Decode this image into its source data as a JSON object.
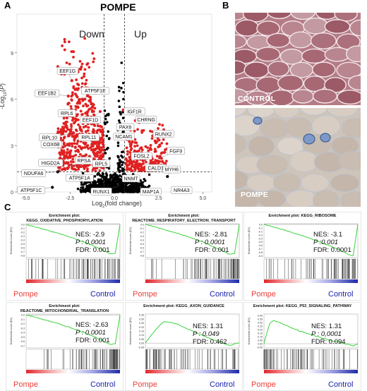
{
  "panels": {
    "a_letter": "A",
    "b_letter": "B",
    "c_letter": "C"
  },
  "volcano": {
    "title": "POMPE",
    "down_label": "Down",
    "up_label": "Up",
    "ylabel": "-Log10(P)",
    "xlabel": "Log2(fold change)",
    "genes": [
      "EEF1G",
      "EEF1B2",
      "ATP5F1E",
      "RPL6",
      "EEF1D",
      "IGF1R",
      "PAX6",
      "CHRNG",
      "RPL10",
      "RPL11",
      "COX6B",
      "NCAM1",
      "RUNX2",
      "FOSL2",
      "CALD1",
      "RPSA",
      "FGF9",
      "HIGD2A",
      "RPL5",
      "NDUFA6",
      "ATP5F1A",
      "MYH6",
      "RUNX1",
      "NNMT",
      "ATP5F1C",
      "MAP1A",
      "NR4A3"
    ]
  },
  "histology": {
    "control_label": "CONTROL",
    "pompe_label": "POMPE"
  },
  "gsea": {
    "group_left": "Pompe",
    "group_right": "Control",
    "plots": [
      {
        "title1": "Enrichment plot:",
        "title2": "KEGG_OXIDATIVE_PHOSPHORYLATION",
        "nes": "NES: -2.9",
        "p": "P : 0.0001",
        "fdr": "FDR: 0.001"
      },
      {
        "title1": "Enrichment plot:",
        "title2": "REACTOME_RESPIRATORY_ELECTRON_TRANSPORT",
        "nes": "NES: -2.81",
        "p": "P : 0.0001",
        "fdr": "FDR: 0.001"
      },
      {
        "title1": "Enrichment plot: KEGG_RIBOSOME",
        "title2": "",
        "nes": "NES: -3.1",
        "p": "P :0.001",
        "fdr": "FDR: 0.0001"
      },
      {
        "title1": "Enrichment plot:",
        "title2": "REACTOME_MITOCHONDRIAL_TRANSLATION",
        "nes": "NES: -2.63",
        "p": "P : 0.0001",
        "fdr": "FDR: 0.001"
      },
      {
        "title1": "Enrichment plot: KEGG_AXON_GUIDANCE",
        "title2": "",
        "nes": "NES: 1.31",
        "p": "P : 0.049",
        "fdr": "FDR: 0.462"
      },
      {
        "title1": "Enrichment plot: KEGG_P53_SIGNALING_PATHWAY",
        "title2": "",
        "nes": "NES: 1.31",
        "p": "P : 0,0001",
        "fdr": "FDR: 0.094"
      }
    ]
  },
  "chart_data": [
    {
      "type": "scatter",
      "title": "POMPE",
      "xlabel": "Log2(fold change)",
      "ylabel": "-Log10(P)",
      "xlim": [
        -5.5,
        5.5
      ],
      "ylim": [
        0,
        11.5
      ],
      "xticks": [
        "-5.0",
        "-2.5",
        "0.0",
        "2.5",
        "5.0"
      ],
      "yticks": [
        "0",
        "3",
        "6",
        "9"
      ],
      "thresholds": {
        "log2fc": [
          -0.58,
          0.58
        ],
        "neglog10p": 1.3
      },
      "colors": {
        "significant": "#e02020",
        "not_significant": "#000000"
      },
      "labeled_points": [
        {
          "gene": "EEF1G",
          "x": -2.4,
          "y": 7.2
        },
        {
          "gene": "EEF1B2",
          "x": -2.6,
          "y": 6.2
        },
        {
          "gene": "ATP5F1E",
          "x": -1.8,
          "y": 6.0
        },
        {
          "gene": "RPL6",
          "x": -2.2,
          "y": 5.0
        },
        {
          "gene": "EEF1D",
          "x": -0.8,
          "y": 5.2
        },
        {
          "gene": "IGF1R",
          "x": 0.5,
          "y": 5.3
        },
        {
          "gene": "PAX6",
          "x": 0.7,
          "y": 4.2
        },
        {
          "gene": "CHRNG",
          "x": 1.4,
          "y": 4.5
        },
        {
          "gene": "RPL10",
          "x": -2.3,
          "y": 3.8
        },
        {
          "gene": "RPL11",
          "x": -1.6,
          "y": 3.9
        },
        {
          "gene": "COX6B",
          "x": -2.2,
          "y": 2.9
        },
        {
          "gene": "NCAM1",
          "x": 0.7,
          "y": 3.4
        },
        {
          "gene": "RUNX2",
          "x": 2.3,
          "y": 3.3
        },
        {
          "gene": "FOSL2",
          "x": 1.3,
          "y": 2.6
        },
        {
          "gene": "CALD1",
          "x": 1.7,
          "y": 2.1
        },
        {
          "gene": "RPSA",
          "x": -1.4,
          "y": 2.3
        },
        {
          "gene": "FGF9",
          "x": 2.6,
          "y": 2.2
        },
        {
          "gene": "HIGD2A",
          "x": -2.0,
          "y": 1.7
        },
        {
          "gene": "RPL5",
          "x": -0.9,
          "y": 1.2
        },
        {
          "gene": "NDUFA6",
          "x": -3.2,
          "y": 1.3
        },
        {
          "gene": "ATP5F1A",
          "x": -1.8,
          "y": 1.0
        },
        {
          "gene": "MYH6",
          "x": 3.0,
          "y": 1.0
        },
        {
          "gene": "RUNX1",
          "x": 0.3,
          "y": 0.4
        },
        {
          "gene": "NNMT",
          "x": 0.7,
          "y": 0.6
        },
        {
          "gene": "ATP5F1C",
          "x": -3.5,
          "y": 0.3
        },
        {
          "gene": "MAP1A",
          "x": 1.9,
          "y": 0.3
        },
        {
          "gene": "NR4A3",
          "x": 3.4,
          "y": 0.2
        }
      ]
    },
    {
      "type": "line",
      "title": "Enrichment plot: KEGG_OXIDATIVE_PHOSPHORYLATION",
      "ylabel": "Enrichment score (ES)",
      "yticks": [
        "0.0",
        "-0.1",
        "-0.2",
        "-0.3",
        "-0.4",
        "-0.5",
        "-0.6",
        "-0.7",
        "-0.8"
      ],
      "ylim": [
        -0.85,
        0.02
      ],
      "x": [
        0,
        0.1,
        0.2,
        0.3,
        0.4,
        0.5,
        0.6,
        0.7,
        0.8,
        0.85,
        0.9,
        0.95,
        1.0
      ],
      "values": [
        0,
        -0.06,
        -0.13,
        -0.2,
        -0.27,
        -0.35,
        -0.44,
        -0.53,
        -0.64,
        -0.7,
        -0.76,
        -0.74,
        0
      ]
    },
    {
      "type": "line",
      "title": "Enrichment plot: REACTOME_RESPIRATORY_ELECTRON_TRANSPORT",
      "ylabel": "Enrichment score (ES)",
      "yticks": [
        "0.0",
        "-0.1",
        "-0.2",
        "-0.3",
        "-0.4",
        "-0.5",
        "-0.6",
        "-0.7",
        "-0.8"
      ],
      "ylim": [
        -0.85,
        0.02
      ],
      "x": [
        0,
        0.1,
        0.2,
        0.3,
        0.4,
        0.5,
        0.6,
        0.7,
        0.8,
        0.85,
        0.9,
        0.95,
        1.0
      ],
      "values": [
        0,
        -0.06,
        -0.13,
        -0.2,
        -0.27,
        -0.35,
        -0.44,
        -0.54,
        -0.65,
        -0.71,
        -0.77,
        -0.74,
        0
      ]
    },
    {
      "type": "line",
      "title": "Enrichment plot: KEGG_RIBOSOME",
      "ylabel": "Enrichment score (ES)",
      "yticks": [
        "0.0",
        "-0.1",
        "-0.2",
        "-0.3",
        "-0.4",
        "-0.5",
        "-0.6",
        "-0.7",
        "-0.8",
        "-0.9"
      ],
      "ylim": [
        -0.95,
        0.02
      ],
      "x": [
        0,
        0.1,
        0.2,
        0.3,
        0.4,
        0.5,
        0.6,
        0.7,
        0.8,
        0.85,
        0.9,
        0.95,
        1.0
      ],
      "values": [
        0,
        -0.07,
        -0.15,
        -0.23,
        -0.32,
        -0.41,
        -0.51,
        -0.61,
        -0.72,
        -0.79,
        -0.86,
        -0.9,
        0
      ]
    },
    {
      "type": "line",
      "title": "Enrichment plot: REACTOME_MITOCHONDRIAL_TRANSLATION",
      "ylabel": "Enrichment score (ES)",
      "yticks": [
        "0.0",
        "-0.1",
        "-0.2",
        "-0.3",
        "-0.4",
        "-0.5",
        "-0.6",
        "-0.7"
      ],
      "ylim": [
        -0.75,
        0.02
      ],
      "x": [
        0,
        0.1,
        0.2,
        0.3,
        0.4,
        0.5,
        0.6,
        0.7,
        0.8,
        0.85,
        0.9,
        0.95,
        1.0
      ],
      "values": [
        0,
        -0.05,
        -0.11,
        -0.17,
        -0.24,
        -0.31,
        -0.39,
        -0.47,
        -0.57,
        -0.62,
        -0.67,
        -0.65,
        0
      ]
    },
    {
      "type": "line",
      "title": "Enrichment plot: KEGG_AXON_GUIDANCE",
      "ylabel": "Enrichment score (ES)",
      "yticks": [
        "0.35",
        "0.30",
        "0.25",
        "0.20",
        "0.15",
        "0.10",
        "0.05",
        "0.00",
        "-0.05"
      ],
      "ylim": [
        -0.06,
        0.36
      ],
      "x": [
        0,
        0.05,
        0.1,
        0.15,
        0.2,
        0.25,
        0.3,
        0.35,
        0.4,
        0.5,
        0.6,
        0.7,
        0.8,
        0.9,
        0.95,
        1.0
      ],
      "values": [
        0,
        0.08,
        0.15,
        0.22,
        0.27,
        0.26,
        0.25,
        0.23,
        0.2,
        0.15,
        0.1,
        0.05,
        0.01,
        -0.03,
        -0.01,
        0
      ]
    },
    {
      "type": "line",
      "title": "Enrichment plot: KEGG_P53_SIGNALING_PATHWAY",
      "ylabel": "Enrichment score (ES)",
      "yticks": [
        "0.40",
        "0.35",
        "0.30",
        "0.25",
        "0.20",
        "0.15",
        "0.10",
        "0.05",
        "0.00",
        "-0.05"
      ],
      "ylim": [
        -0.06,
        0.42
      ],
      "x": [
        0,
        0.03,
        0.06,
        0.1,
        0.15,
        0.2,
        0.25,
        0.3,
        0.4,
        0.5,
        0.6,
        0.7,
        0.8,
        0.9,
        0.95,
        1.0
      ],
      "values": [
        0,
        0.15,
        0.28,
        0.33,
        0.31,
        0.28,
        0.25,
        0.22,
        0.17,
        0.13,
        0.09,
        0.05,
        0.02,
        -0.01,
        -0.03,
        0
      ]
    }
  ]
}
